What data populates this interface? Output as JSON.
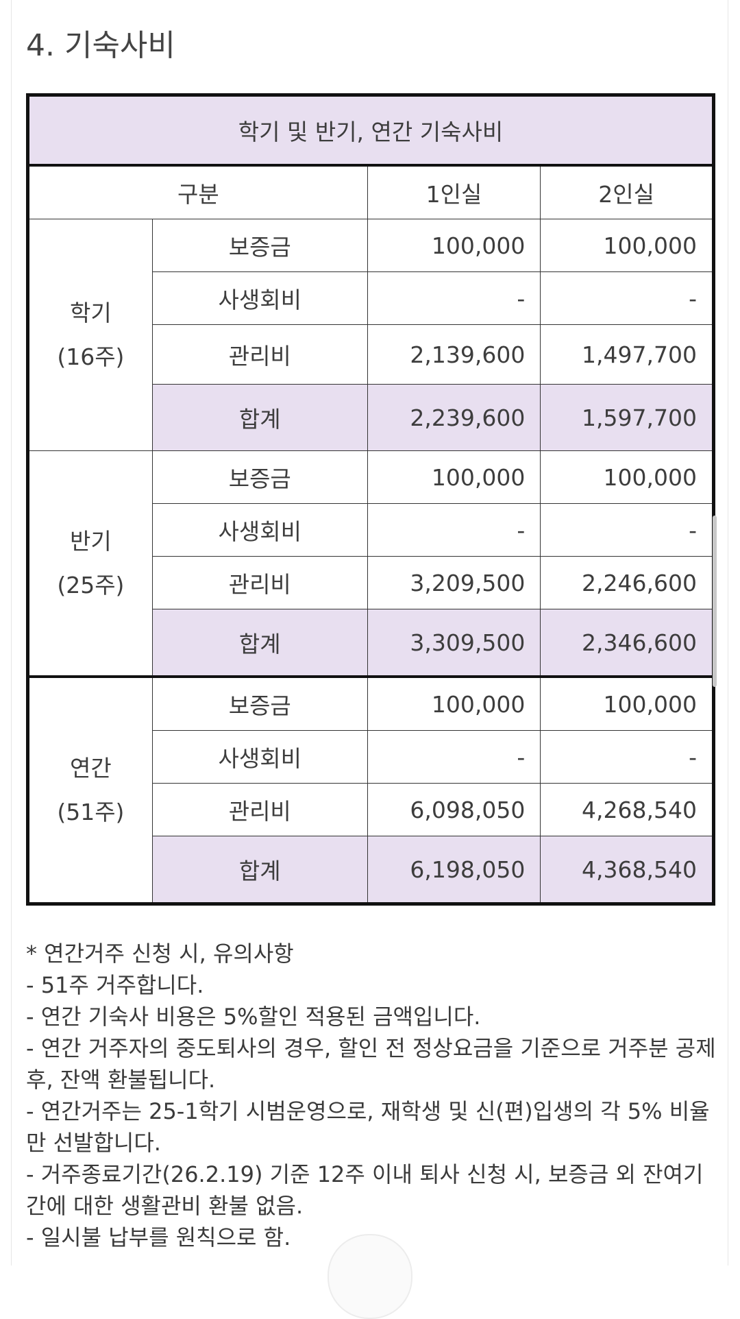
{
  "section_title": "4. 기숙사비",
  "table": {
    "title": "학기 및 반기, 연간 기숙사비",
    "headers": [
      "구분",
      "1인실",
      "2인실"
    ],
    "groups": [
      {
        "name": "학기",
        "period": "(16주)",
        "rows": [
          {
            "item": "보증금",
            "single": "100,000",
            "double": "100,000"
          },
          {
            "item": "사생회비",
            "single": "-",
            "double": "-"
          },
          {
            "item": "관리비",
            "single": "2,139,600",
            "double": "1,497,700"
          },
          {
            "item": "합계",
            "single": "2,239,600",
            "double": "1,597,700"
          }
        ]
      },
      {
        "name": "반기",
        "period": "(25주)",
        "rows": [
          {
            "item": "보증금",
            "single": "100,000",
            "double": "100,000"
          },
          {
            "item": "사생회비",
            "single": "-",
            "double": "-"
          },
          {
            "item": "관리비",
            "single": "3,209,500",
            "double": "2,246,600"
          },
          {
            "item": "합계",
            "single": "3,309,500",
            "double": "2,346,600"
          }
        ]
      },
      {
        "name": "연간",
        "period": "(51주)",
        "rows": [
          {
            "item": "보증금",
            "single": "100,000",
            "double": "100,000"
          },
          {
            "item": "사생회비",
            "single": "-",
            "double": "-"
          },
          {
            "item": "관리비",
            "single": "6,098,050",
            "double": "4,268,540"
          },
          {
            "item": "합계",
            "single": "6,198,050",
            "double": "4,368,540"
          }
        ]
      }
    ]
  },
  "notes": [
    "* 연간거주 신청 시, 유의사항",
    "- 51주 거주합니다.",
    "- 연간 기숙사 비용은 5%할인 적용된 금액입니다.",
    "- 연간 거주자의 중도퇴사의 경우, 할인 전 정상요금을 기준으로 거주분 공제 후, 잔액 환불됩니다.",
    "- 연간거주는 25-1학기 시범운영으로, 재학생 및 신(편)입생의 각 5% 비율만 선발합니다.",
    "- 거주종료기간(26.2.19) 기준 12주 이내 퇴사 신청 시, 보증금 외 잔여기간에 대한 생활관비 환불 없음.",
    "- 일시불 납부를 원칙으로 함."
  ],
  "colors": {
    "header_bg": "#e8dff0",
    "border": "#111111",
    "text": "#3a3a3a"
  }
}
